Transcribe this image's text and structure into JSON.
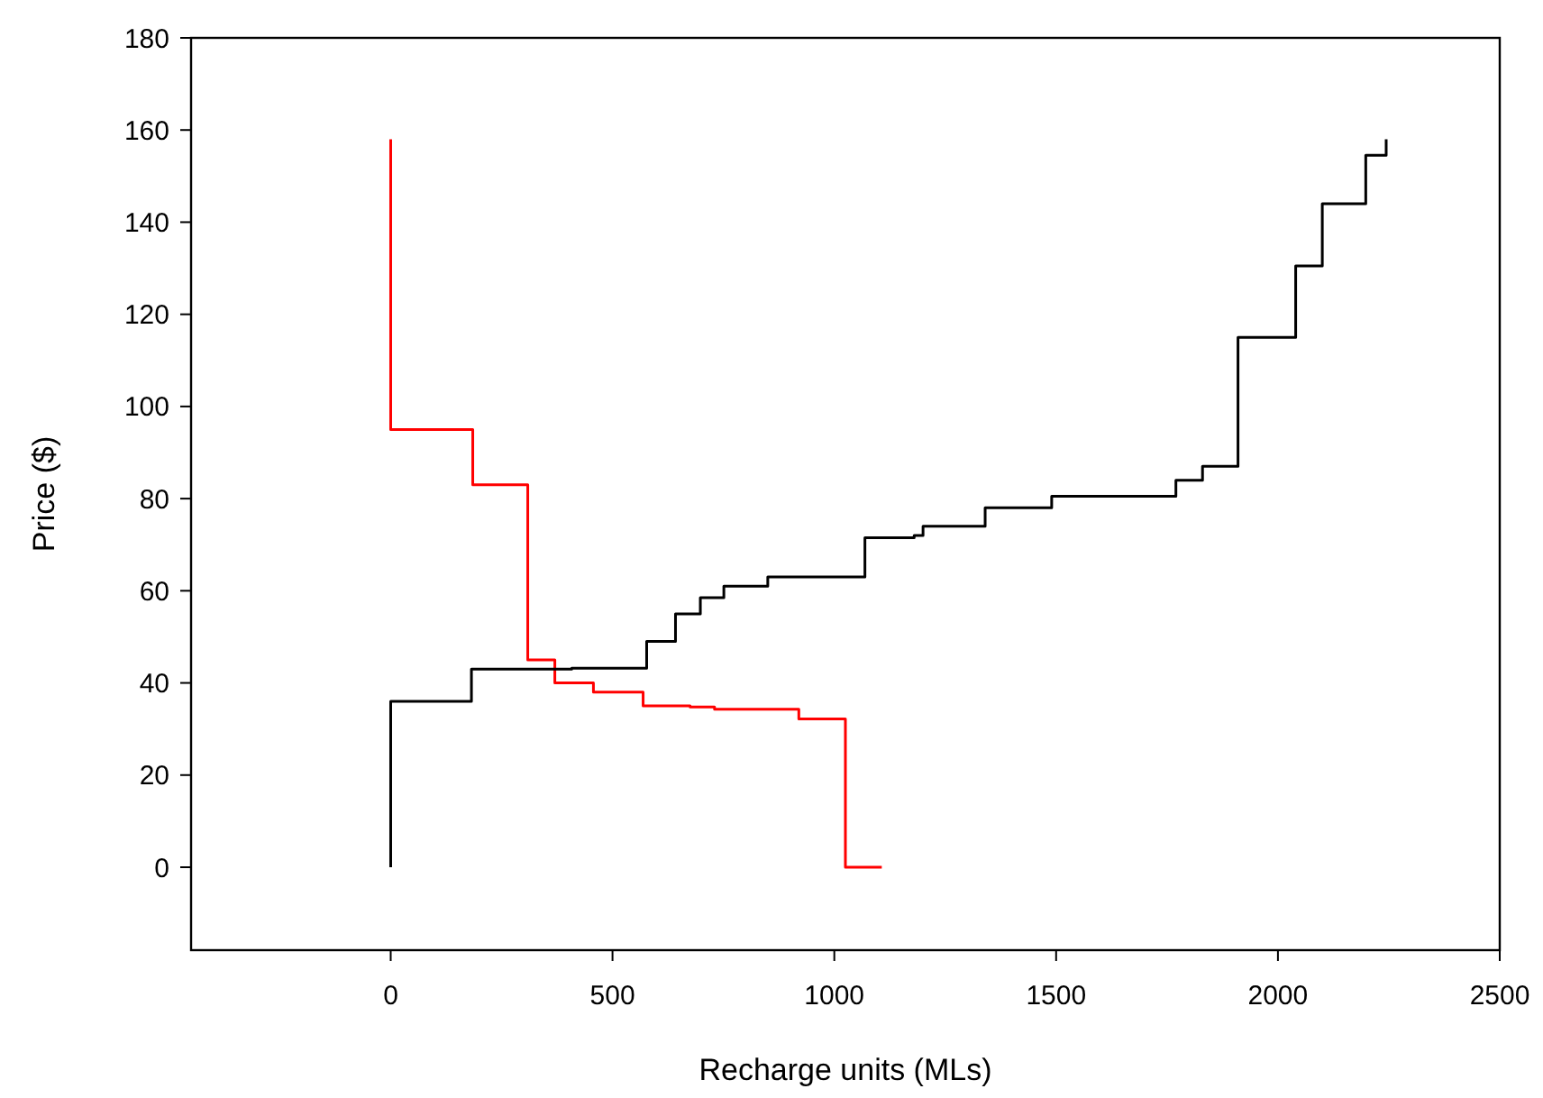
{
  "chart_data": {
    "type": "step",
    "xlabel": "Recharge units (MLs)",
    "ylabel": "Price ($)",
    "xlim": [
      -450,
      2500
    ],
    "xticks": [
      0,
      500,
      1000,
      1500,
      2000,
      2500
    ],
    "ylim": [
      -18,
      180
    ],
    "yticks": [
      0,
      20,
      40,
      60,
      80,
      100,
      120,
      140,
      160,
      180
    ],
    "grid": false,
    "marker": "none",
    "line_style": "solid",
    "series": [
      {
        "color": "#ff0000",
        "x": [
          0,
          0,
          185,
          309,
          370,
          457,
          569,
          675,
          730,
          920,
          1025,
          1107
        ],
        "values": [
          158,
          95,
          83,
          45,
          40,
          38,
          35,
          34.8,
          34.3,
          32.2,
          0,
          0
        ]
      },
      {
        "color": "#000000",
        "x": [
          0,
          0,
          182,
          408,
          577,
          642,
          698,
          751,
          850,
          1069,
          1180,
          1200,
          1340,
          1490,
          1770,
          1830,
          1910,
          2040,
          2100,
          2198,
          2244
        ],
        "values": [
          0,
          36,
          43,
          43.2,
          49,
          55,
          58.5,
          61,
          63,
          71.5,
          72,
          74,
          78,
          80.5,
          84,
          87,
          115,
          130.5,
          144,
          154.5,
          158
        ]
      }
    ]
  }
}
